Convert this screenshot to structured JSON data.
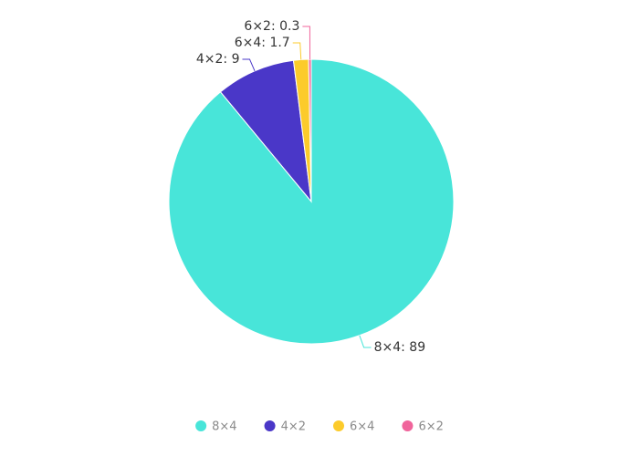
{
  "chart_data": {
    "type": "pie",
    "categories": [
      "8×4",
      "4×2",
      "6×4",
      "6×2"
    ],
    "values": [
      89,
      9,
      1.7,
      0.3
    ],
    "value_labels": [
      "8×4: 89",
      "4×2: 9",
      "6×4: 1.7",
      "6×2: 0.3"
    ],
    "colors": [
      "#48e5d9",
      "#4a37c8",
      "#fccb2b",
      "#f0649b"
    ],
    "legend": "bottom"
  }
}
